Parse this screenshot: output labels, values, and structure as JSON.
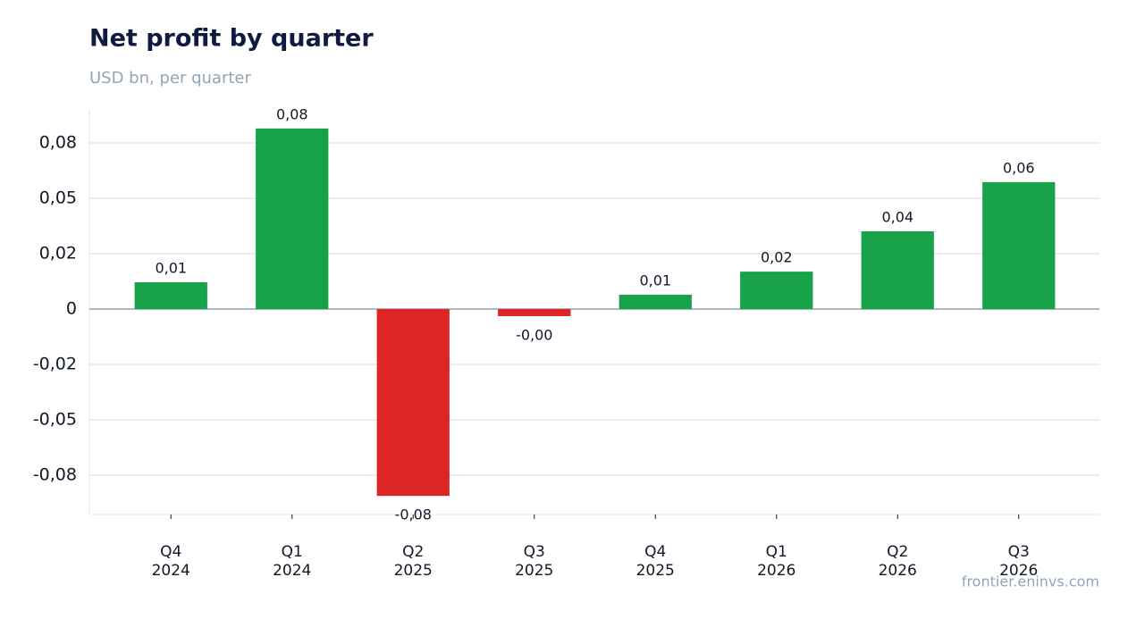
{
  "chart_data": {
    "type": "bar",
    "title": "Net profit by quarter",
    "subtitle": "USD bn, per quarter",
    "source": "frontier.eninvs.com",
    "categories": [
      [
        "Q4",
        "2024"
      ],
      [
        "Q1",
        "2024"
      ],
      [
        "Q2",
        "2025"
      ],
      [
        "Q3",
        "2025"
      ],
      [
        "Q4",
        "2025"
      ],
      [
        "Q1",
        "2026"
      ],
      [
        "Q2",
        "2026"
      ],
      [
        "Q3",
        "2026"
      ]
    ],
    "values": [
      0.0121,
      0.0815,
      -0.0843,
      -0.0032,
      0.0065,
      0.0169,
      0.0351,
      0.0573
    ],
    "value_labels": [
      "0,01",
      "0,08",
      "-0,08",
      "-0,00",
      "0,01",
      "0,02",
      "0,04",
      "0,06"
    ],
    "positive_color": "#18a34a",
    "negative_color": "#dc2626",
    "ylim": [
      -0.0927,
      0.0903
    ],
    "yticks": [
      {
        "value": 0.075,
        "label": "0,08"
      },
      {
        "value": 0.05,
        "label": "0,05"
      },
      {
        "value": 0.025,
        "label": "0,02"
      },
      0,
      {
        "value": -0.025,
        "label": "-0,02"
      },
      {
        "value": -0.05,
        "label": "-0,05"
      },
      {
        "value": -0.075,
        "label": "-0,08"
      }
    ],
    "grid": true
  }
}
